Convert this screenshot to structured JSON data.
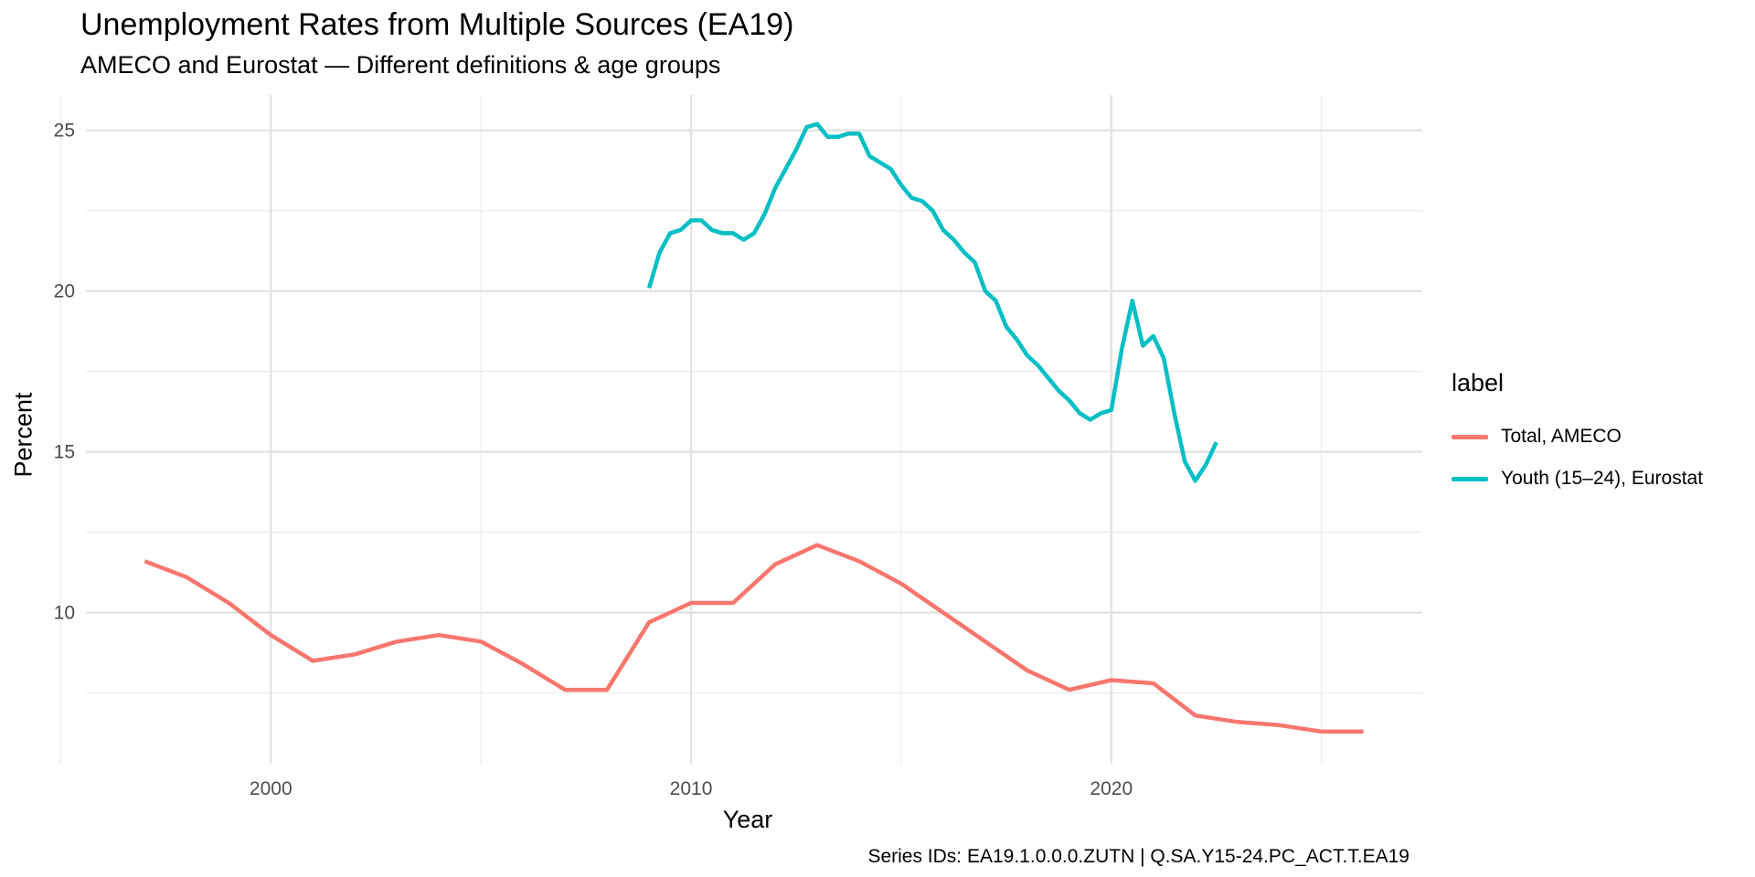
{
  "chart_data": {
    "type": "line",
    "title": "Unemployment Rates from Multiple Sources (EA19)",
    "subtitle": "AMECO and Eurostat — Different definitions & age groups",
    "xlabel": "Year",
    "ylabel": "Percent",
    "caption": "Series IDs: EA19.1.0.0.0.ZUTN | Q.SA.Y15-24.PC_ACT.T.EA19",
    "xlim": [
      1995.6,
      2027.4
    ],
    "ylim": [
      5.3,
      26.1
    ],
    "x_ticks": [
      2000,
      2010,
      2020
    ],
    "x_minor": [
      1995,
      2005,
      2015,
      2025
    ],
    "y_ticks": [
      10,
      15,
      20,
      25
    ],
    "y_minor": [
      7.5,
      12.5,
      17.5,
      22.5
    ],
    "grid": true,
    "legend": {
      "title": "label",
      "position": "right",
      "entries": [
        "Total, AMECO",
        "Youth (15–24), Eurostat"
      ]
    },
    "series": [
      {
        "name": "Total, AMECO",
        "color": "#f8766d",
        "x": [
          1997,
          1998,
          1999,
          2000,
          2001,
          2002,
          2003,
          2004,
          2005,
          2006,
          2007,
          2008,
          2009,
          2010,
          2011,
          2012,
          2013,
          2014,
          2015,
          2016,
          2017,
          2018,
          2019,
          2020,
          2021,
          2022,
          2023,
          2024,
          2025,
          2026
        ],
        "y": [
          11.6,
          11.1,
          10.3,
          9.3,
          8.5,
          8.7,
          9.1,
          9.3,
          9.1,
          8.4,
          7.6,
          7.6,
          9.7,
          10.3,
          10.3,
          11.5,
          12.1,
          11.6,
          10.9,
          10.0,
          9.1,
          8.2,
          7.6,
          7.9,
          7.8,
          6.8,
          6.6,
          6.5,
          6.3,
          6.3
        ]
      },
      {
        "name": "Youth (15–24), Eurostat",
        "color": "#00bfc4",
        "x": [
          2009.0,
          2009.25,
          2009.5,
          2009.75,
          2010.0,
          2010.25,
          2010.5,
          2010.75,
          2011.0,
          2011.25,
          2011.5,
          2011.75,
          2012.0,
          2012.25,
          2012.5,
          2012.75,
          2013.0,
          2013.25,
          2013.5,
          2013.75,
          2014.0,
          2014.25,
          2014.5,
          2014.75,
          2015.0,
          2015.25,
          2015.5,
          2015.75,
          2016.0,
          2016.25,
          2016.5,
          2016.75,
          2017.0,
          2017.25,
          2017.5,
          2017.75,
          2018.0,
          2018.25,
          2018.5,
          2018.75,
          2019.0,
          2019.25,
          2019.5,
          2019.75,
          2020.0,
          2020.25,
          2020.5,
          2020.75,
          2021.0,
          2021.25,
          2021.5,
          2021.75,
          2022.0,
          2022.25,
          2022.5
        ],
        "y": [
          20.1,
          21.2,
          21.8,
          21.9,
          22.2,
          22.2,
          21.9,
          21.8,
          21.8,
          21.6,
          21.8,
          22.4,
          23.2,
          23.8,
          24.4,
          25.1,
          25.2,
          24.8,
          24.8,
          24.9,
          24.9,
          24.2,
          24.0,
          23.8,
          23.3,
          22.9,
          22.8,
          22.5,
          21.9,
          21.6,
          21.2,
          20.9,
          20.0,
          19.7,
          18.9,
          18.5,
          18.0,
          17.7,
          17.3,
          16.9,
          16.6,
          16.2,
          16.0,
          16.2,
          16.3,
          18.2,
          19.7,
          18.3,
          18.6,
          17.9,
          16.2,
          14.7,
          14.1,
          14.6,
          15.3
        ]
      }
    ]
  }
}
